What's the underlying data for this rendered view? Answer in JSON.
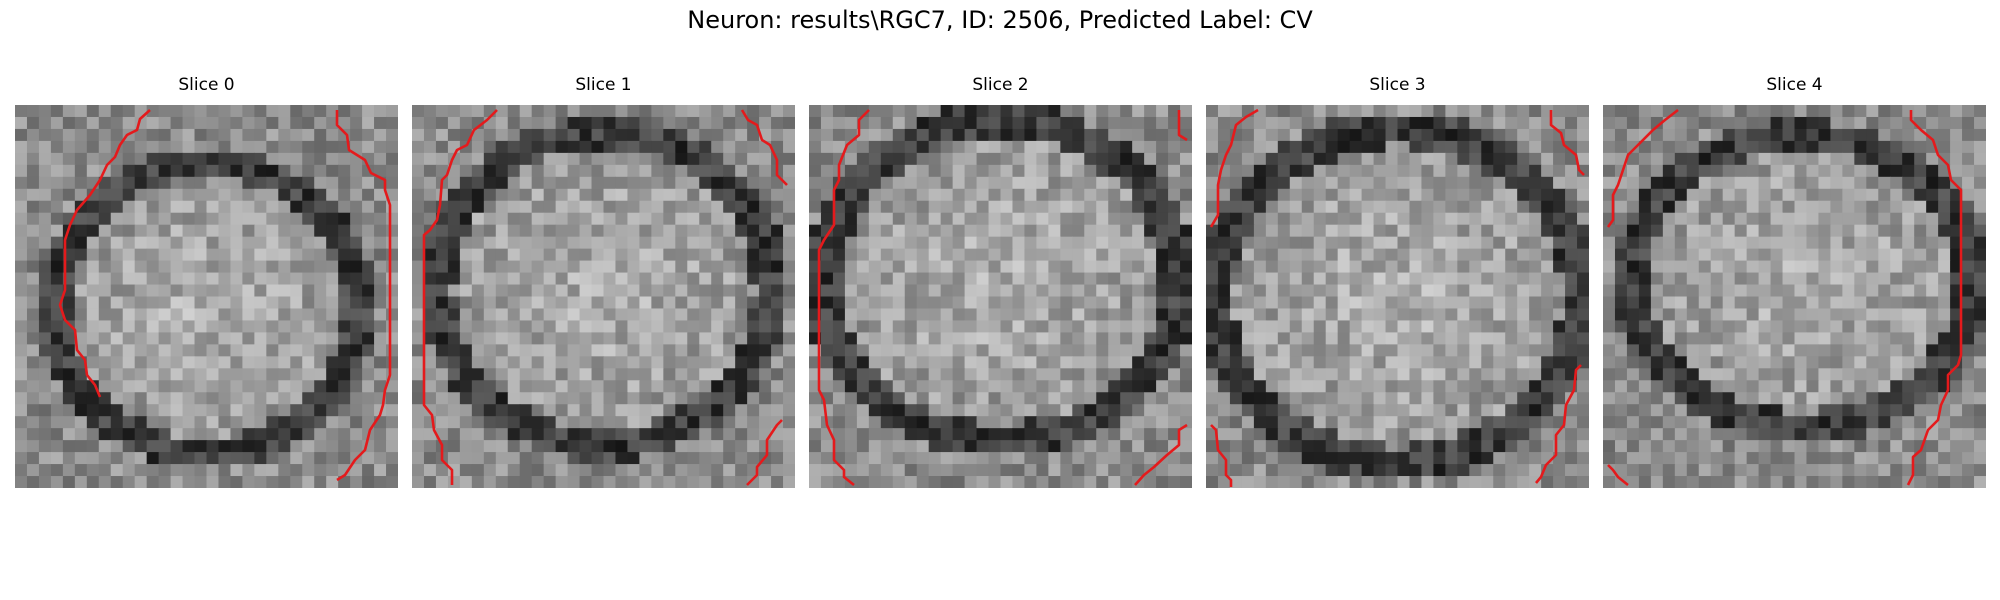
{
  "title": "Neuron: results\\RGC7, ID: 2506, Predicted Label: CV",
  "slices": [
    {
      "title": "Slice 0"
    },
    {
      "title": "Slice 1"
    },
    {
      "title": "Slice 2"
    },
    {
      "title": "Slice 3"
    },
    {
      "title": "Slice 4"
    }
  ],
  "colors": {
    "contour": "#e41a1c",
    "background": "#ffffff"
  }
}
